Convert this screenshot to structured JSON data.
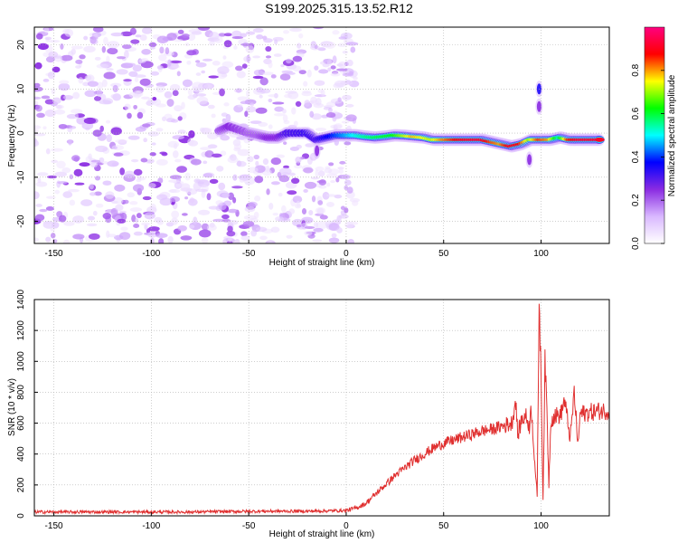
{
  "title": "S199.2025.315.13.52.R12",
  "chart_data": [
    {
      "type": "heatmap",
      "title": "",
      "xlabel": "Height of straight line (km)",
      "ylabel": "Frequency (Hz)",
      "xlim": [
        -160,
        135
      ],
      "ylim": [
        -25,
        24
      ],
      "xticks": [
        -150,
        -100,
        -50,
        0,
        50,
        100
      ],
      "yticks": [
        -20,
        -10,
        0,
        10,
        20
      ],
      "grid": true,
      "colorbar": {
        "label": "Normalized spectral amplitude",
        "range": [
          0,
          1
        ],
        "ticks": [
          "0.0",
          "0.2",
          "0.4",
          "0.6",
          "0.8"
        ],
        "colors": [
          "#ffffff",
          "#d9b8ff",
          "#8a2be2",
          "#0000ff",
          "#00ffff",
          "#00ff00",
          "#ffff00",
          "#ff0000",
          "#ff0080"
        ]
      },
      "ridge": [
        {
          "x": -65,
          "y": 0.5,
          "amp": 0.2
        },
        {
          "x": -60,
          "y": 1.5,
          "amp": 0.25
        },
        {
          "x": -50,
          "y": 0.0,
          "amp": 0.2
        },
        {
          "x": -45,
          "y": -0.5,
          "amp": 0.2
        },
        {
          "x": -40,
          "y": -1.0,
          "amp": 0.25
        },
        {
          "x": -35,
          "y": -1.0,
          "amp": 0.25
        },
        {
          "x": -30,
          "y": 0.0,
          "amp": 0.3
        },
        {
          "x": -20,
          "y": 0.0,
          "amp": 0.32
        },
        {
          "x": -15,
          "y": -1.5,
          "amp": 0.3
        },
        {
          "x": -10,
          "y": -1.0,
          "amp": 0.35
        },
        {
          "x": -5,
          "y": -0.5,
          "amp": 0.4
        },
        {
          "x": 0,
          "y": -0.5,
          "amp": 0.45
        },
        {
          "x": 5,
          "y": -0.5,
          "amp": 0.5
        },
        {
          "x": 10,
          "y": -0.8,
          "amp": 0.55
        },
        {
          "x": 15,
          "y": -1.0,
          "amp": 0.58
        },
        {
          "x": 20,
          "y": -0.8,
          "amp": 0.6
        },
        {
          "x": 25,
          "y": -0.5,
          "amp": 0.62
        },
        {
          "x": 30,
          "y": -0.6,
          "amp": 0.7
        },
        {
          "x": 35,
          "y": -0.8,
          "amp": 0.78
        },
        {
          "x": 40,
          "y": -1.0,
          "amp": 0.75
        },
        {
          "x": 45,
          "y": -1.5,
          "amp": 0.72
        },
        {
          "x": 50,
          "y": -1.5,
          "amp": 0.8
        },
        {
          "x": 55,
          "y": -1.5,
          "amp": 0.85
        },
        {
          "x": 60,
          "y": -1.5,
          "amp": 0.9
        },
        {
          "x": 65,
          "y": -1.5,
          "amp": 0.92
        },
        {
          "x": 70,
          "y": -1.5,
          "amp": 0.92
        },
        {
          "x": 75,
          "y": -2.0,
          "amp": 0.85
        },
        {
          "x": 80,
          "y": -2.5,
          "amp": 0.8
        },
        {
          "x": 85,
          "y": -3.0,
          "amp": 0.9
        },
        {
          "x": 90,
          "y": -2.5,
          "amp": 0.88
        },
        {
          "x": 95,
          "y": -1.5,
          "amp": 0.7
        },
        {
          "x": 100,
          "y": -1.5,
          "amp": 0.85
        },
        {
          "x": 105,
          "y": -1.5,
          "amp": 0.8
        },
        {
          "x": 110,
          "y": -1.0,
          "amp": 0.55
        },
        {
          "x": 115,
          "y": -1.5,
          "amp": 0.85
        },
        {
          "x": 120,
          "y": -1.5,
          "amp": 0.92
        },
        {
          "x": 125,
          "y": -1.5,
          "amp": 0.92
        },
        {
          "x": 130,
          "y": -1.5,
          "amp": 0.92
        }
      ],
      "features": [
        {
          "x": 99,
          "y": 10,
          "amp": 0.35
        },
        {
          "x": 99,
          "y": 6,
          "amp": 0.25
        },
        {
          "x": 94,
          "y": -6,
          "amp": 0.25
        },
        {
          "x": -15,
          "y": -4,
          "amp": 0.25
        }
      ]
    },
    {
      "type": "line",
      "title": "",
      "xlabel": "Height of straight line (km)",
      "ylabel": "SNR (10 * v/v)",
      "xlim": [
        -160,
        135
      ],
      "ylim": [
        0,
        1400
      ],
      "xticks": [
        -150,
        -100,
        -50,
        0,
        50,
        100
      ],
      "yticks": [
        0,
        200,
        400,
        600,
        800,
        1000,
        1200,
        1400
      ],
      "grid": true,
      "line_color": "#e03030",
      "series": [
        {
          "name": "",
          "x": [
            -160,
            -140,
            -120,
            -100,
            -80,
            -60,
            -40,
            -20,
            -10,
            0,
            5,
            10,
            15,
            20,
            25,
            30,
            35,
            40,
            45,
            50,
            55,
            60,
            65,
            70,
            75,
            80,
            85,
            87,
            88,
            90,
            92,
            94,
            95,
            97,
            98,
            99,
            100,
            101,
            102,
            103,
            104,
            105,
            107,
            110,
            112,
            115,
            117,
            119,
            120,
            125,
            130,
            135
          ],
          "y": [
            25,
            25,
            25,
            25,
            25,
            28,
            30,
            30,
            32,
            35,
            50,
            80,
            140,
            200,
            260,
            310,
            360,
            400,
            440,
            470,
            490,
            510,
            530,
            550,
            560,
            580,
            600,
            750,
            520,
            620,
            650,
            580,
            700,
            300,
            120,
            1400,
            900,
            100,
            1000,
            680,
            200,
            620,
            650,
            650,
            750,
            500,
            800,
            450,
            660,
            670,
            680,
            680
          ]
        }
      ]
    }
  ]
}
